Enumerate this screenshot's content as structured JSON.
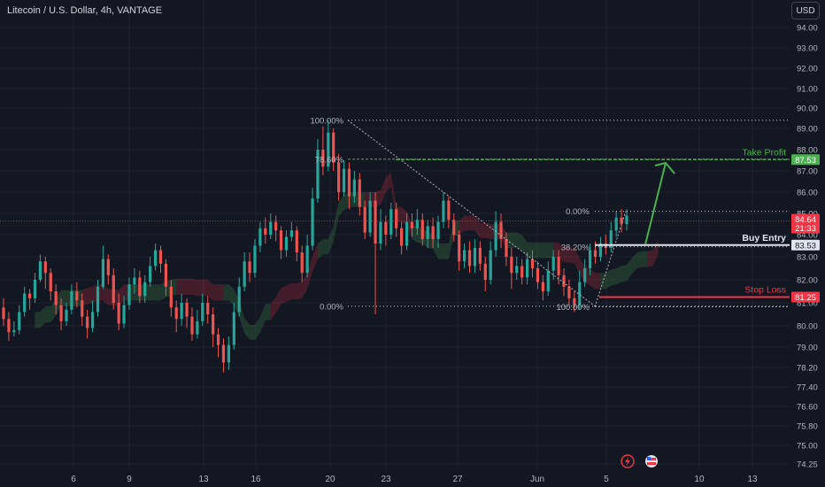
{
  "header": {
    "title": "Litecoin / U.S. Dollar, 4h, VANTAGE",
    "currency": "USD"
  },
  "colors": {
    "background": "#131722",
    "up": "#26a69a",
    "down": "#ef5350",
    "grid": "#1e222d",
    "take_profit": "#4caf50",
    "stop_loss": "#f23645",
    "buy_entry": "#b2b5be"
  },
  "chart_data": {
    "type": "candlestick",
    "y_ticks": [
      "94.00",
      "93.00",
      "92.00",
      "91.00",
      "90.00",
      "89.00",
      "88.00",
      "87.00",
      "86.00",
      "85.00",
      "84.00",
      "83.00",
      "82.00",
      "81.00",
      "80.00",
      "79.00",
      "78.20",
      "77.40",
      "76.60",
      "75.80",
      "75.00",
      "74.25"
    ],
    "x_ticks": [
      "6",
      "9",
      "13",
      "16",
      "20",
      "23",
      "27",
      "Jun",
      "5",
      "10",
      "13"
    ],
    "price_tags": [
      {
        "label": "87.53",
        "value": 87.53,
        "color": "#4caf50"
      },
      {
        "label": "84.64",
        "value": 84.64,
        "color": "#f23645"
      },
      {
        "label": "21:33",
        "value": 84.4,
        "color": "#f23645"
      },
      {
        "label": "83.53",
        "value": 83.53,
        "color": "#e0e3eb"
      },
      {
        "label": "81.25",
        "value": 81.25,
        "color": "#f23645"
      }
    ],
    "annotations": {
      "take_profit": "Take Profit",
      "buy_entry": "Buy Entry",
      "stop_loss": "Stop Loss"
    },
    "fib_left": {
      "levels": [
        {
          "label": "100.00%",
          "value": 89.4
        },
        {
          "label": "78.60%",
          "value": 87.55
        },
        {
          "label": "0.00%",
          "value": 80.85
        }
      ]
    },
    "fib_right": {
      "levels": [
        {
          "label": "0.00%",
          "value": 85.1
        },
        {
          "label": "38.20%",
          "value": 83.45
        },
        {
          "label": "100.00%",
          "value": 80.83
        }
      ]
    },
    "levels": {
      "take_profit": 87.53,
      "buy_entry": 83.53,
      "stop_loss": 81.25,
      "current": 84.64
    },
    "ohlc": [
      [
        80.8,
        80.3,
        81.2,
        80.0
      ],
      [
        80.3,
        79.7,
        80.6,
        79.3
      ],
      [
        79.7,
        79.8,
        80.2,
        79.5
      ],
      [
        79.8,
        80.6,
        80.9,
        79.6
      ],
      [
        80.6,
        81.4,
        81.7,
        80.4
      ],
      [
        81.4,
        81.2,
        81.6,
        80.7
      ],
      [
        81.2,
        82.0,
        82.3,
        81.0
      ],
      [
        82.0,
        82.8,
        83.1,
        81.9
      ],
      [
        82.8,
        82.3,
        83.0,
        81.6
      ],
      [
        82.3,
        81.5,
        82.5,
        81.1
      ],
      [
        81.5,
        80.9,
        81.8,
        80.5
      ],
      [
        80.9,
        80.2,
        81.2,
        79.8
      ],
      [
        80.2,
        80.7,
        81.0,
        80.0
      ],
      [
        80.7,
        81.5,
        81.8,
        80.5
      ],
      [
        81.5,
        81.1,
        81.9,
        80.8
      ],
      [
        81.1,
        80.4,
        81.4,
        80.0
      ],
      [
        80.4,
        79.9,
        80.7,
        79.4
      ],
      [
        79.9,
        80.6,
        81.1,
        79.7
      ],
      [
        80.6,
        81.7,
        82.0,
        80.4
      ],
      [
        81.7,
        82.9,
        83.5,
        81.6
      ],
      [
        82.9,
        82.2,
        83.1,
        81.8
      ],
      [
        82.2,
        81.0,
        82.5,
        80.7
      ],
      [
        81.0,
        80.1,
        81.4,
        79.8
      ],
      [
        80.1,
        80.9,
        81.3,
        79.9
      ],
      [
        80.9,
        81.8,
        82.1,
        80.7
      ],
      [
        81.8,
        82.1,
        82.5,
        81.4
      ],
      [
        82.1,
        81.3,
        82.4,
        81.0
      ],
      [
        81.3,
        81.9,
        82.2,
        81.0
      ],
      [
        81.9,
        82.6,
        83.0,
        81.7
      ],
      [
        82.6,
        83.3,
        83.6,
        82.4
      ],
      [
        83.3,
        82.7,
        83.5,
        82.3
      ],
      [
        82.7,
        81.7,
        82.9,
        81.3
      ],
      [
        81.7,
        80.8,
        82.0,
        80.4
      ],
      [
        80.8,
        80.3,
        81.1,
        79.7
      ],
      [
        80.3,
        81.0,
        81.4,
        80.0
      ],
      [
        81.0,
        80.4,
        81.2,
        79.9
      ],
      [
        80.4,
        79.6,
        80.8,
        79.3
      ],
      [
        79.6,
        80.2,
        80.7,
        79.4
      ],
      [
        80.2,
        81.0,
        81.4,
        80.0
      ],
      [
        81.0,
        80.5,
        81.3,
        80.1
      ],
      [
        80.5,
        79.6,
        80.8,
        79.0
      ],
      [
        79.6,
        79.1,
        79.9,
        78.6
      ],
      [
        79.1,
        78.4,
        79.4,
        78.0
      ],
      [
        78.4,
        79.1,
        79.5,
        78.1
      ],
      [
        79.1,
        80.6,
        81.0,
        78.9
      ],
      [
        80.6,
        81.7,
        82.1,
        80.4
      ],
      [
        81.7,
        82.8,
        83.2,
        81.5
      ],
      [
        82.8,
        82.3,
        83.2,
        81.9
      ],
      [
        82.3,
        83.5,
        83.8,
        82.1
      ],
      [
        83.5,
        84.3,
        84.6,
        83.2
      ],
      [
        84.3,
        84.0,
        84.8,
        83.6
      ],
      [
        84.0,
        84.6,
        85.0,
        83.8
      ],
      [
        84.6,
        84.2,
        84.9,
        83.7
      ],
      [
        84.2,
        83.3,
        84.4,
        82.9
      ],
      [
        83.3,
        83.9,
        84.2,
        83.0
      ],
      [
        83.9,
        84.2,
        84.6,
        83.7
      ],
      [
        84.2,
        83.2,
        84.4,
        82.8
      ],
      [
        83.2,
        82.3,
        83.5,
        81.9
      ],
      [
        82.3,
        83.5,
        84.0,
        82.1
      ],
      [
        83.5,
        85.7,
        86.2,
        83.3
      ],
      [
        85.7,
        88.0,
        88.5,
        85.5
      ],
      [
        88.0,
        87.2,
        89.1,
        86.8
      ],
      [
        87.2,
        88.8,
        89.4,
        87.0
      ],
      [
        88.8,
        87.4,
        89.0,
        87.0
      ],
      [
        87.4,
        86.0,
        87.8,
        85.6
      ],
      [
        86.0,
        87.1,
        87.5,
        85.8
      ],
      [
        87.1,
        85.8,
        87.4,
        85.2
      ],
      [
        85.8,
        86.6,
        87.0,
        85.5
      ],
      [
        86.6,
        85.3,
        86.9,
        84.9
      ],
      [
        85.3,
        84.1,
        85.6,
        83.8
      ],
      [
        84.1,
        85.6,
        86.0,
        83.9
      ],
      [
        85.6,
        83.6,
        86.0,
        80.5
      ],
      [
        83.6,
        84.6,
        85.2,
        83.3
      ],
      [
        84.6,
        84.0,
        84.9,
        83.5
      ],
      [
        84.0,
        85.2,
        85.5,
        83.8
      ],
      [
        85.2,
        84.3,
        85.5,
        83.9
      ],
      [
        84.3,
        83.5,
        84.6,
        83.1
      ],
      [
        83.5,
        84.6,
        85.0,
        83.3
      ],
      [
        84.6,
        84.3,
        85.0,
        83.9
      ],
      [
        84.3,
        84.7,
        85.2,
        84.0
      ],
      [
        84.7,
        83.8,
        85.0,
        83.5
      ],
      [
        83.8,
        84.4,
        84.7,
        83.4
      ],
      [
        84.4,
        83.8,
        84.8,
        83.4
      ],
      [
        83.8,
        84.6,
        84.9,
        83.4
      ],
      [
        84.6,
        85.6,
        86.0,
        84.3
      ],
      [
        85.6,
        84.7,
        85.8,
        84.3
      ],
      [
        84.7,
        84.0,
        85.0,
        83.7
      ],
      [
        84.0,
        82.8,
        84.2,
        82.4
      ],
      [
        82.8,
        83.3,
        83.6,
        82.5
      ],
      [
        83.3,
        82.6,
        83.7,
        82.3
      ],
      [
        82.6,
        83.4,
        83.8,
        82.3
      ],
      [
        83.4,
        82.7,
        83.7,
        82.4
      ],
      [
        82.7,
        82.0,
        83.0,
        81.5
      ],
      [
        82.0,
        83.3,
        83.7,
        81.8
      ],
      [
        83.3,
        84.6,
        85.1,
        83.0
      ],
      [
        84.6,
        83.8,
        85.0,
        83.4
      ],
      [
        83.8,
        83.0,
        84.1,
        82.6
      ],
      [
        83.0,
        82.3,
        83.4,
        81.6
      ],
      [
        82.3,
        82.6,
        83.0,
        82.0
      ],
      [
        82.6,
        82.1,
        82.9,
        81.8
      ],
      [
        82.1,
        82.9,
        83.2,
        81.8
      ],
      [
        82.9,
        82.5,
        83.3,
        82.1
      ],
      [
        82.5,
        81.9,
        82.8,
        81.6
      ],
      [
        81.9,
        81.5,
        82.2,
        81.1
      ],
      [
        81.5,
        82.4,
        82.8,
        81.3
      ],
      [
        82.4,
        83.0,
        83.3,
        82.0
      ],
      [
        83.0,
        82.2,
        83.3,
        81.8
      ],
      [
        82.2,
        81.7,
        82.5,
        81.3
      ],
      [
        81.7,
        81.2,
        82.0,
        80.9
      ],
      [
        81.2,
        80.9,
        81.5,
        80.6
      ],
      [
        80.9,
        81.9,
        82.4,
        80.7
      ],
      [
        81.9,
        82.5,
        82.9,
        81.7
      ],
      [
        82.5,
        83.3,
        83.6,
        82.2
      ],
      [
        83.3,
        83.0,
        83.7,
        82.7
      ],
      [
        83.0,
        83.6,
        83.9,
        82.8
      ],
      [
        83.6,
        83.4,
        84.0,
        83.1
      ],
      [
        83.4,
        84.2,
        84.6,
        83.2
      ],
      [
        84.2,
        84.8,
        85.1,
        83.9
      ],
      [
        84.8,
        84.5,
        85.2,
        84.1
      ],
      [
        84.5,
        84.9,
        85.2,
        84.2
      ]
    ]
  }
}
